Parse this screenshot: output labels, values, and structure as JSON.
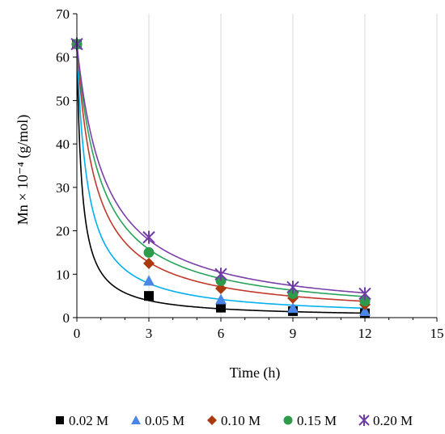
{
  "chart_data": {
    "type": "scatter",
    "xlabel": "Time (h)",
    "ylabel": "Mn × 10⁻⁴ (g/mol)",
    "xlim": [
      0,
      15
    ],
    "ylim": [
      0,
      70
    ],
    "xticks": [
      0,
      3,
      6,
      9,
      12,
      15
    ],
    "yticks": [
      0,
      10,
      20,
      30,
      40,
      50,
      60,
      70
    ],
    "grid": "vertical",
    "legend_position": "bottom",
    "series": [
      {
        "name": "0.02 M",
        "marker": "square",
        "color": "#000000",
        "x": [
          0,
          3,
          6,
          9,
          12
        ],
        "y": [
          63,
          5,
          2.3,
          1.5,
          1.0
        ],
        "fit_k": 4.2
      },
      {
        "name": "0.05 M",
        "marker": "triangle",
        "color": "#4a86e8",
        "x": [
          0,
          3,
          6,
          9,
          12
        ],
        "y": [
          63,
          8.5,
          4.2,
          2.2,
          1.5
        ],
        "fit_k": 9
      },
      {
        "name": "0.10 M",
        "marker": "diamond",
        "color": "#a93a0e",
        "x": [
          0,
          3,
          6,
          9,
          12
        ],
        "y": [
          63,
          12.5,
          6.7,
          4.5,
          3.0
        ],
        "fit_k": 16
      },
      {
        "name": "0.15 M",
        "marker": "circle",
        "color": "#2e9a4c",
        "x": [
          0,
          3,
          6,
          9,
          12
        ],
        "y": [
          63,
          15,
          8.5,
          5.5,
          3.8
        ],
        "fit_k": 21
      },
      {
        "name": "0.20 M",
        "marker": "star",
        "color": "#6f3ca6",
        "x": [
          0,
          3,
          6,
          9,
          12
        ],
        "y": [
          63,
          18.5,
          10,
          7,
          5.5
        ],
        "fit_k": 25
      }
    ],
    "fit_colors": [
      "#000000",
      "#00b0f0",
      "#c0392b",
      "#27a35a",
      "#7b3fa8"
    ]
  }
}
